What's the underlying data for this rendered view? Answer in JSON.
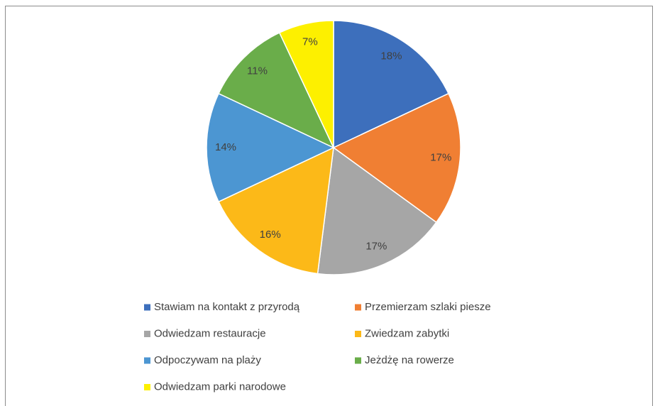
{
  "chart_data": {
    "type": "pie",
    "categories": [
      "Stawiam na kontakt z przyrodą",
      "Przemierzam szlaki piesze",
      "Odwiedzam restauracje",
      "Zwiedzam zabytki",
      "Odpoczywam na plaży",
      "Jeżdżę na rowerze",
      "Odwiedzam parki narodowe"
    ],
    "values": [
      18,
      17,
      17,
      16,
      14,
      11,
      7
    ],
    "value_labels": [
      "18%",
      "17%",
      "17%",
      "16%",
      "14%",
      "11%",
      "7%"
    ],
    "colors": [
      "#3d6fbc",
      "#f07f33",
      "#a6a6a6",
      "#fcb918",
      "#4c96d2",
      "#6aad4a",
      "#fdf000"
    ],
    "legend": "bottom"
  }
}
